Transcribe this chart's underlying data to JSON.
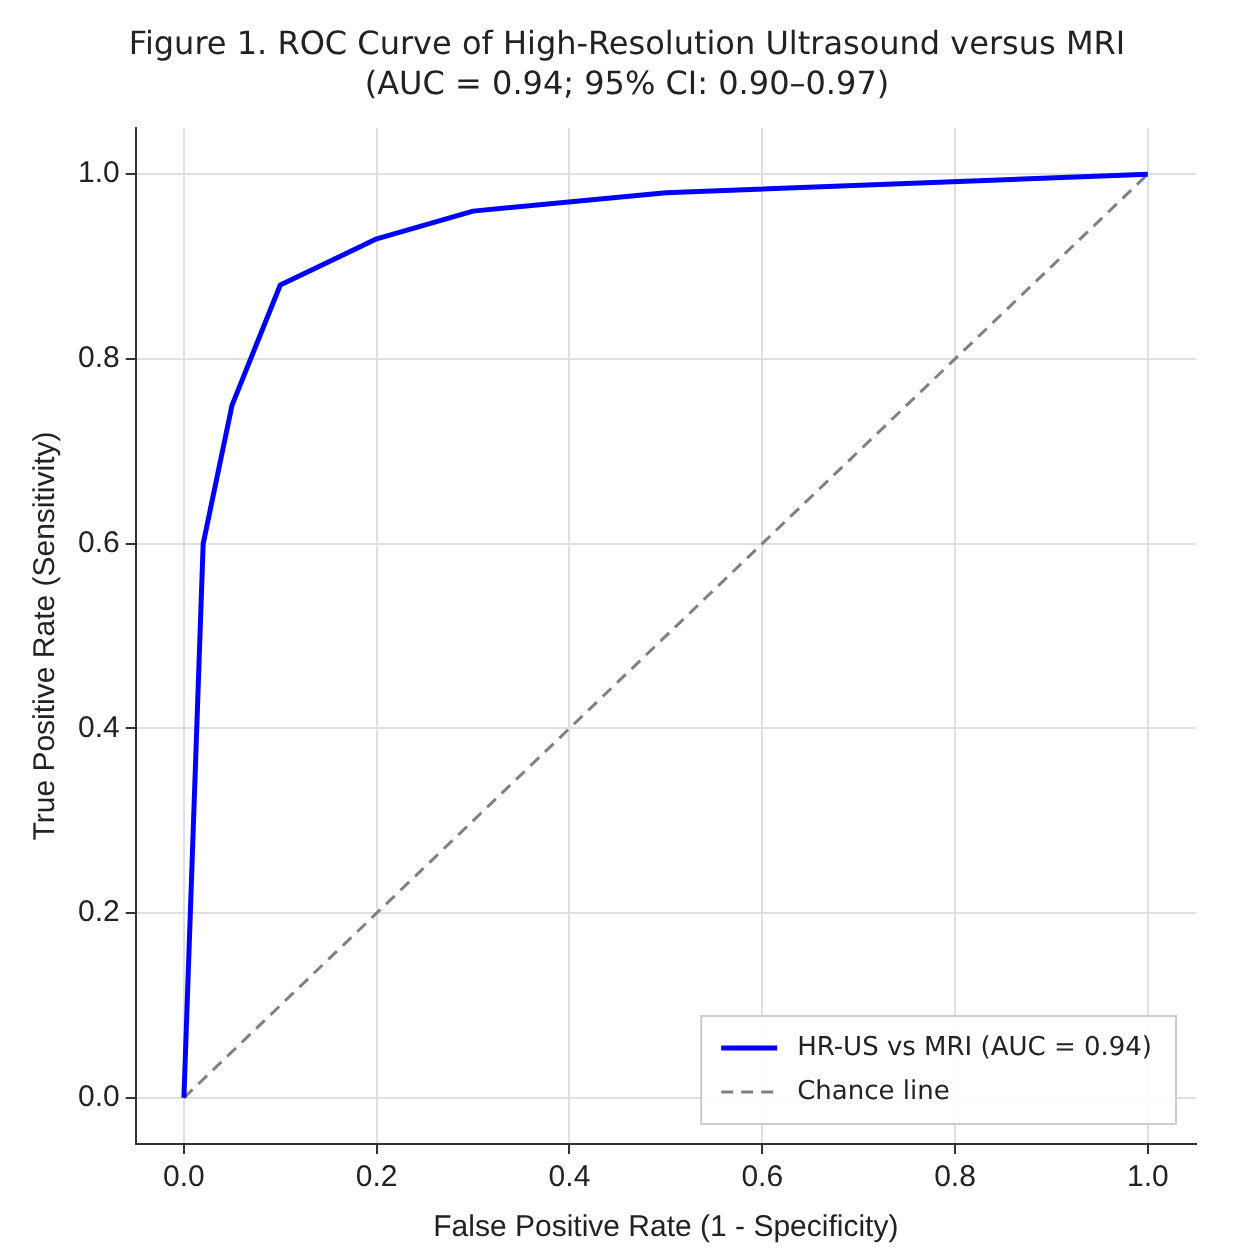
{
  "chart_data": {
    "type": "line",
    "title": "Figure 1. ROC Curve of High-Resolution Ultrasound versus MRI",
    "subtitle": "(AUC = 0.94; 95% CI: 0.90–0.97)",
    "xlabel": "False Positive Rate (1 - Specificity)",
    "ylabel": "True Positive Rate (Sensitivity)",
    "series": [
      {
        "name": "HR-US vs MRI (AUC = 0.94)",
        "color": "#0000ff",
        "x": [
          0,
          0.02,
          0.05,
          0.1,
          0.2,
          0.3,
          0.5,
          1
        ],
        "values": [
          0,
          0.6,
          0.75,
          0.88,
          0.93,
          0.96,
          0.98,
          1
        ],
        "line_style": "solid"
      },
      {
        "name": "Chance line",
        "color": "#808080",
        "x": [
          0,
          1
        ],
        "values": [
          0,
          1
        ],
        "line_style": "dashed"
      }
    ],
    "xlim": [
      -0.05,
      1.05
    ],
    "ylim": [
      -0.05,
      1.05
    ],
    "xticks": [
      {
        "value": 0,
        "label": "0.0"
      },
      {
        "value": 0.2,
        "label": "0.2"
      },
      {
        "value": 0.4,
        "label": "0.4"
      },
      {
        "value": 0.6,
        "label": "0.6"
      },
      {
        "value": 0.8,
        "label": "0.8"
      },
      {
        "value": 1,
        "label": "1.0"
      }
    ],
    "yticks": [
      {
        "value": 0,
        "label": "0.0"
      },
      {
        "value": 0.2,
        "label": "0.2"
      },
      {
        "value": 0.4,
        "label": "0.4"
      },
      {
        "value": 0.6,
        "label": "0.6"
      },
      {
        "value": 0.8,
        "label": "0.8"
      },
      {
        "value": 1,
        "label": "1.0"
      }
    ],
    "grid": true,
    "legend": "bottom right",
    "marker": "none"
  }
}
